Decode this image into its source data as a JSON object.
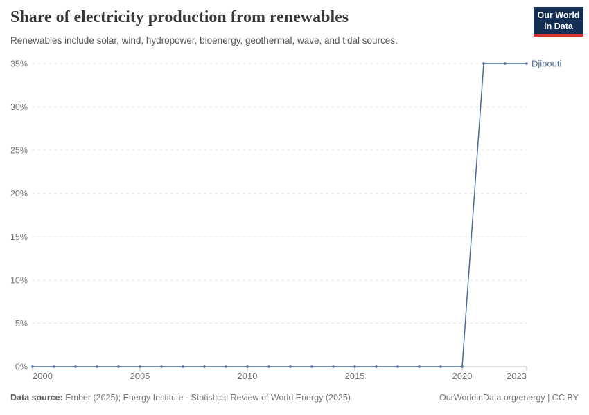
{
  "header": {
    "title": "Share of electricity production from renewables",
    "subtitle": "Renewables include solar, wind, hydropower, bioenergy, geothermal, wave, and tidal sources.",
    "logo": {
      "line1": "Our World",
      "line2": "in Data"
    }
  },
  "footer": {
    "source_label": "Data source:",
    "source_text": " Ember (2025); Energy Institute - Statistical Review of World Energy (2025)",
    "credit": "OurWorldinData.org/energy | CC BY"
  },
  "colors": {
    "line": "#4C6A9C",
    "grid": "#dcdcdc",
    "axis": "#c0c0c0",
    "tick_label": "#757575",
    "logo_bg": "#132E52",
    "logo_red": "#D0342C"
  },
  "chart_data": {
    "type": "line",
    "title": "Share of electricity production from renewables",
    "xlabel": "",
    "ylabel": "",
    "xlim": [
      2000,
      2023
    ],
    "ylim": [
      0,
      35
    ],
    "x_ticks": [
      2000,
      2005,
      2010,
      2015,
      2020,
      2023
    ],
    "y_ticks": [
      0,
      5,
      10,
      15,
      20,
      25,
      30,
      35
    ],
    "y_suffix": "%",
    "grid": "horizontal-dashed",
    "legend_position": "end-of-line-label",
    "series": [
      {
        "name": "Djibouti",
        "color": "#4C6A9C",
        "x": [
          2000,
          2001,
          2002,
          2003,
          2004,
          2005,
          2006,
          2007,
          2008,
          2009,
          2010,
          2011,
          2012,
          2013,
          2014,
          2015,
          2016,
          2017,
          2018,
          2019,
          2020,
          2021,
          2022,
          2023
        ],
        "values": [
          0,
          0,
          0,
          0,
          0,
          0,
          0,
          0,
          0,
          0,
          0,
          0,
          0,
          0,
          0,
          0,
          0,
          0,
          0,
          0,
          0,
          35,
          35,
          35
        ]
      }
    ]
  }
}
